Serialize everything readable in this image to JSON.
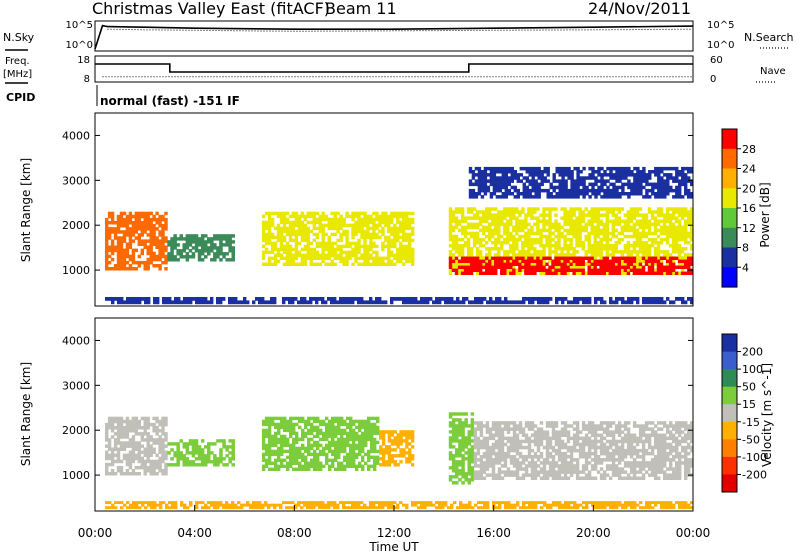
{
  "header": {
    "title": "Christmas Valley East (fitACF)",
    "beam": "Beam 11",
    "date": "24/Nov/2011"
  },
  "chart_data": [
    {
      "type": "line",
      "panel": "noise",
      "left_label": "N.Sky",
      "right_label": "N.Search",
      "left_ticks": [
        "10^5",
        "10^0"
      ],
      "right_ticks": [
        "10^5",
        "10^0"
      ],
      "series": [
        {
          "name": "N.Sky",
          "style": "solid",
          "x": [
            0.0,
            0.3,
            0.5,
            2,
            4,
            8,
            12,
            16,
            20,
            24
          ],
          "y": [
            0.0,
            4.5,
            4.3,
            4.2,
            4.0,
            3.8,
            3.8,
            4.0,
            4.2,
            4.4
          ]
        },
        {
          "name": "N.Search",
          "style": "dotted",
          "x": [
            0.5,
            2,
            4,
            8,
            12,
            16,
            20,
            24
          ],
          "y": [
            3.8,
            3.7,
            3.6,
            3.4,
            3.5,
            3.6,
            3.7,
            3.8
          ]
        }
      ]
    },
    {
      "type": "line",
      "panel": "frequency",
      "left_label": "Freq.",
      "left_unit": "[MHz]",
      "right_label": "Nave",
      "left_ticks": [
        "18",
        "8"
      ],
      "right_ticks": [
        "60",
        "0"
      ],
      "series": [
        {
          "name": "Freq.",
          "style": "solid",
          "x": [
            0,
            3,
            3,
            15,
            15,
            24
          ],
          "y": [
            16,
            16,
            12,
            12,
            16,
            16
          ]
        },
        {
          "name": "Nave",
          "style": "dotted",
          "x": [
            0.3,
            24
          ],
          "y": [
            10,
            10
          ]
        }
      ]
    },
    {
      "type": "table",
      "panel": "cpid",
      "label": "CPID",
      "text": "normal (fast) -151 IF"
    },
    {
      "type": "heatmap",
      "panel": "power",
      "ylabel": "Slant Range [km]",
      "yticks": [
        1000,
        2000,
        3000,
        4000
      ],
      "ylim": [
        200,
        4500
      ],
      "xlim": [
        0,
        24
      ],
      "colorbar": {
        "label": "Power [dB]",
        "ticks": [
          "28",
          "24",
          "20",
          "16",
          "12",
          "8",
          "4"
        ],
        "colors": [
          "#ff0000",
          "#ff6a00",
          "#ffb000",
          "#e8e800",
          "#5fc93a",
          "#3a8a5a",
          "#1a2fa0",
          "#0000ff"
        ]
      },
      "regions": [
        {
          "x0": 0.4,
          "x1": 2.9,
          "r0": 1000,
          "r1": 2300,
          "value": 26
        },
        {
          "x0": 2.9,
          "x1": 5.6,
          "r0": 1200,
          "r1": 1800,
          "value": 8
        },
        {
          "x0": 6.7,
          "x1": 12.8,
          "r0": 1100,
          "r1": 2300,
          "value": 18
        },
        {
          "x0": 14.2,
          "x1": 24,
          "r0": 900,
          "r1": 2400,
          "value": 16
        },
        {
          "x0": 14.2,
          "x1": 24,
          "r0": 900,
          "r1": 1300,
          "value": 28
        },
        {
          "x0": 15.0,
          "x1": 24,
          "r0": 2600,
          "r1": 3300,
          "value": 6
        },
        {
          "x0": 0.4,
          "x1": 24,
          "r0": 250,
          "r1": 400,
          "value": 6
        }
      ]
    },
    {
      "type": "heatmap",
      "panel": "velocity",
      "ylabel": "Slant Range [km]",
      "yticks": [
        1000,
        2000,
        3000,
        4000
      ],
      "ylim": [
        200,
        4500
      ],
      "xlim": [
        0,
        24
      ],
      "xticks": [
        "00:00",
        "04:00",
        "08:00",
        "12:00",
        "16:00",
        "20:00",
        "00:00"
      ],
      "xlabel": "Time UT",
      "colorbar": {
        "label": "Velocity [m s^-1]",
        "ticks": [
          "200",
          "100",
          "50",
          "15",
          "-15",
          "-50",
          "-100",
          "-200"
        ],
        "colors": [
          "#1a2fa0",
          "#3a5fcd",
          "#2e8b57",
          "#7ccd3c",
          "#c0c0b8",
          "#ffb000",
          "#ff7f00",
          "#ff3000",
          "#e00000"
        ]
      },
      "regions": [
        {
          "x0": 0.4,
          "x1": 2.9,
          "r0": 1000,
          "r1": 2300,
          "value": 0
        },
        {
          "x0": 2.9,
          "x1": 5.6,
          "r0": 1200,
          "r1": 1800,
          "value": 30
        },
        {
          "x0": 6.7,
          "x1": 11.4,
          "r0": 1100,
          "r1": 2300,
          "value": 30
        },
        {
          "x0": 11.4,
          "x1": 12.8,
          "r0": 1200,
          "r1": 2000,
          "value": -40
        },
        {
          "x0": 14.2,
          "x1": 15.2,
          "r0": 800,
          "r1": 2400,
          "value": 30
        },
        {
          "x0": 15.2,
          "x1": 24,
          "r0": 900,
          "r1": 2200,
          "value": 0
        },
        {
          "x0": 0.4,
          "x1": 24,
          "r0": 250,
          "r1": 420,
          "value": -30
        }
      ]
    }
  ]
}
